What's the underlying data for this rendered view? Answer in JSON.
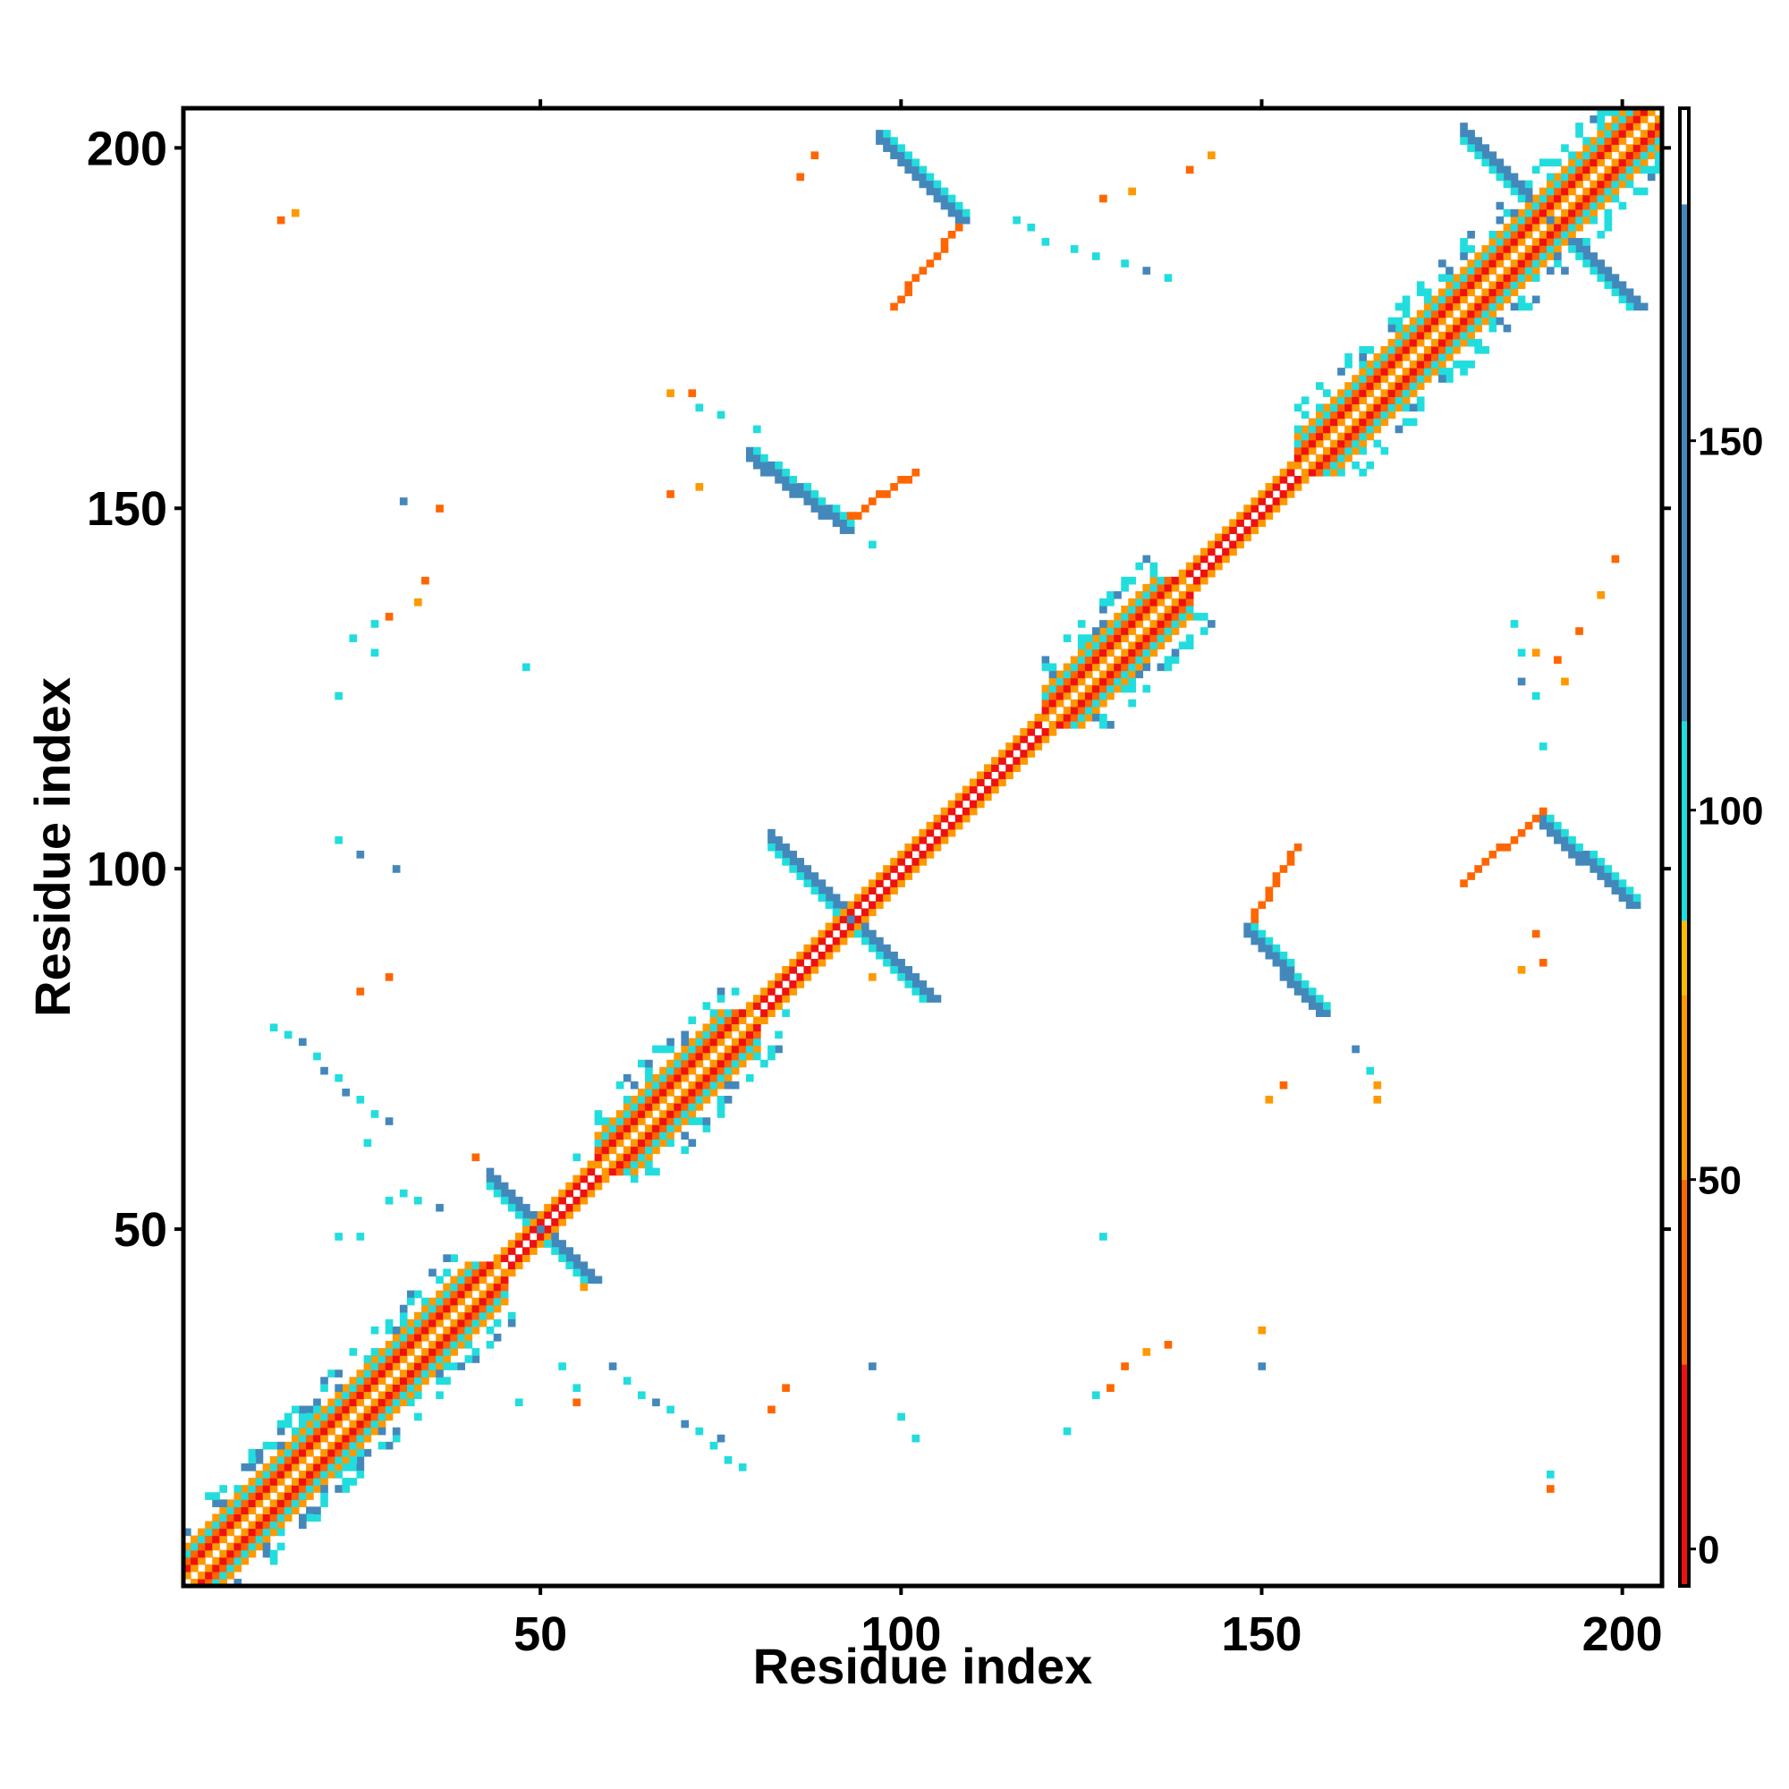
{
  "chart_data": {
    "type": "heatmap",
    "title": "",
    "xlabel": "Residue index",
    "ylabel": "Residue index",
    "xlim": [
      1,
      205
    ],
    "ylim": [
      1,
      205
    ],
    "x_ticks": [
      50,
      100,
      150,
      200
    ],
    "y_ticks": [
      50,
      100,
      150,
      200
    ],
    "x_tick_labels": [
      "50",
      "100",
      "150",
      "200"
    ],
    "y_tick_labels": [
      "50",
      "100",
      "150",
      "200"
    ],
    "grid": false,
    "colorbar": {
      "position": "right",
      "range": [
        -5,
        195
      ],
      "ticks": [
        0,
        50,
        100,
        150
      ],
      "tick_labels": [
        "0",
        "50",
        "100",
        "150"
      ],
      "bands": [
        {
          "from": -5,
          "to": 25,
          "color": "#ee1111"
        },
        {
          "from": 25,
          "to": 50,
          "color": "#ff6600"
        },
        {
          "from": 50,
          "to": 75,
          "color": "#ff9900"
        },
        {
          "from": 75,
          "to": 85,
          "color": "#ffbb00"
        },
        {
          "from": 85,
          "to": 112,
          "color": "#22dddd"
        },
        {
          "from": 112,
          "to": 182,
          "color": "#4488bb"
        },
        {
          "from": 182,
          "to": 195,
          "color": "#ffffff"
        }
      ]
    },
    "value_colors": {
      "red": "#ee1111",
      "orange_red": "#ff6600",
      "orange": "#ff9900",
      "cyan": "#22dddd",
      "steel_blue": "#4488bb"
    },
    "features": {
      "diagonal": {
        "from": 1,
        "to": 205,
        "value": 0
      },
      "helices": [
        [
          1,
          45
        ],
        [
          58,
          80
        ],
        [
          120,
          140
        ],
        [
          155,
          205
        ]
      ],
      "antiparallel_strands": [
        {
          "center": 50,
          "arms": [
            [
              43,
              57
            ],
            [
              57,
              43
            ]
          ]
        },
        {
          "center": 93,
          "arms": [
            [
              83,
              105
            ],
            [
              105,
              83
            ]
          ]
        },
        {
          "center": 190,
          "arms": [
            [
              178,
              202
            ],
            [
              202,
              178
            ]
          ]
        },
        {
          "center_x": 103,
          "center_y": 193,
          "arm": [
            [
              97,
              202
            ],
            [
              108,
              189
            ]
          ]
        },
        {
          "center_x": 87,
          "center_y": 150,
          "arm": [
            [
              79,
              158
            ],
            [
              92,
              148
            ]
          ]
        },
        {
          "center_x": 195,
          "center_y": 103,
          "arm": [
            [
              189,
              108
            ],
            [
              202,
              97
            ]
          ]
        },
        {
          "center_x": 152,
          "center_y": 87,
          "arm": [
            [
              148,
              92
            ],
            [
              158,
              79
            ]
          ]
        }
      ]
    }
  }
}
